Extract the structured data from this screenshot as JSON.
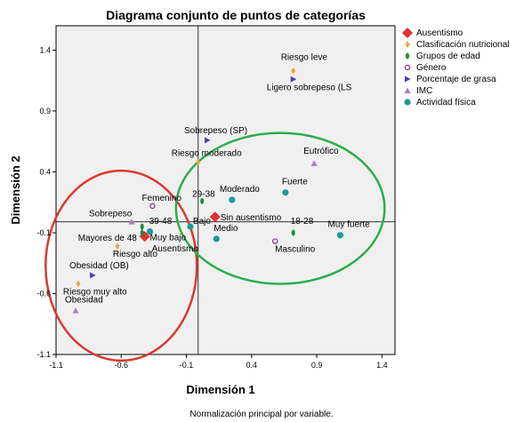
{
  "chart_data": {
    "type": "scatter",
    "title": "Diagrama conjunto de puntos de categorías",
    "xlabel": "Dimensión 1",
    "ylabel": "Dimensión 2",
    "note": "Normalización principal por variable.",
    "xlim": [
      -1.1,
      1.5
    ],
    "ylim": [
      -1.1,
      1.6
    ],
    "x_ticks": [
      "-1.1",
      "-0.6",
      "-0.1",
      "0.4",
      "0.9",
      "1.4"
    ],
    "x_tick_values": [
      -1.1,
      -0.6,
      -0.1,
      0.4,
      0.9,
      1.4
    ],
    "y_ticks": [
      "-1.1",
      "-0.6",
      "-0.1",
      "0.4",
      "0.9",
      "1.4"
    ],
    "y_tick_values": [
      -1.1,
      -0.6,
      -0.1,
      0.4,
      0.9,
      1.4
    ],
    "grid": false,
    "reference_lines": {
      "x": -0.01,
      "y": -0.01
    },
    "legend_position": "right",
    "series": [
      {
        "name": "Ausentismo",
        "marker": "diamond-lg",
        "color": "#e0322e",
        "points": [
          {
            "label": "Sin ausentismo",
            "x": 0.12,
            "y": 0.03
          },
          {
            "label": "Ausentismo",
            "x": -0.42,
            "y": -0.13
          }
        ]
      },
      {
        "name": "Clasificación nutricional",
        "marker": "diamond",
        "color": "#f2a13a",
        "points": [
          {
            "label": "Riesgo leve",
            "x": 0.72,
            "y": 1.23
          },
          {
            "label": "Riesgo moderado",
            "x": -0.01,
            "y": 0.48
          },
          {
            "label": "Riesgo alto",
            "x": -0.63,
            "y": -0.21
          },
          {
            "label": "Riesgo muy alto",
            "x": -0.93,
            "y": -0.52
          }
        ]
      },
      {
        "name": "Grupos de edad",
        "marker": "dot",
        "color": "#1d8a3a",
        "points": [
          {
            "label": "29-38",
            "x": 0.02,
            "y": 0.16
          },
          {
            "label": "39-48",
            "x": -0.44,
            "y": -0.05
          },
          {
            "label": "Mayores de 48",
            "x": -0.44,
            "y": -0.1
          },
          {
            "label": "18-28",
            "x": 0.72,
            "y": -0.1
          }
        ]
      },
      {
        "name": "Género",
        "marker": "circle-open",
        "color": "#8c2a8c",
        "points": [
          {
            "label": "Femenino",
            "x": -0.36,
            "y": 0.12
          },
          {
            "label": "Masculino",
            "x": 0.58,
            "y": -0.17
          }
        ]
      },
      {
        "name": "Porcentaje de grasa",
        "marker": "triangle-right",
        "color": "#4a3fb0",
        "points": [
          {
            "label": "Ligero sobrepeso (LS",
            "x": 0.72,
            "y": 1.16
          },
          {
            "label": "Sobrepeso (SP)",
            "x": 0.06,
            "y": 0.66
          },
          {
            "label": "Obesidad (OB)",
            "x": -0.82,
            "y": -0.45
          }
        ]
      },
      {
        "name": "IMC",
        "marker": "triangle-up",
        "color": "#a87ec8",
        "points": [
          {
            "label": "Eutrófico",
            "x": 0.88,
            "y": 0.47
          },
          {
            "label": "Sobrepeso",
            "x": -0.52,
            "y": -0.01
          },
          {
            "label": "Obesidad",
            "x": -0.95,
            "y": -0.74
          }
        ]
      },
      {
        "name": "Actividad física",
        "marker": "circle",
        "color": "#1c9a9a",
        "points": [
          {
            "label": "Moderado",
            "x": 0.25,
            "y": 0.17
          },
          {
            "label": "Fuerte",
            "x": 0.66,
            "y": 0.23
          },
          {
            "label": "Muy fuerte",
            "x": 1.08,
            "y": -0.12
          },
          {
            "label": "Medio",
            "x": 0.13,
            "y": -0.15
          },
          {
            "label": "Bajo",
            "x": -0.07,
            "y": -0.05
          },
          {
            "label": "Muy bajo",
            "x": -0.38,
            "y": -0.09
          }
        ]
      }
    ],
    "annotations": [
      {
        "shape": "ellipse",
        "color": "#d93a2f",
        "center": [
          -0.6,
          -0.37
        ],
        "radius": [
          0.58,
          0.78
        ]
      },
      {
        "shape": "ellipse",
        "color": "#2bae4a",
        "center": [
          0.62,
          0.1
        ],
        "radius": [
          0.8,
          0.62
        ]
      }
    ]
  }
}
